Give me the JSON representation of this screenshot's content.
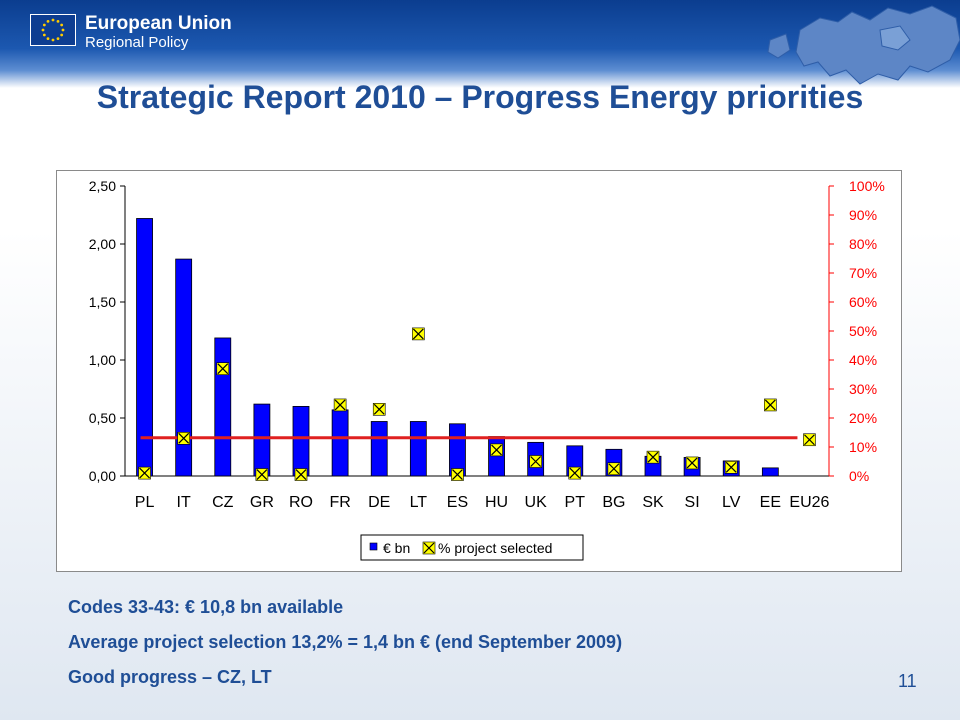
{
  "header": {
    "org_name": "European Union",
    "org_sub": "Regional Policy",
    "logo_icon": "eu-flag-icon",
    "map_icon": "europe-map-icon"
  },
  "slide": {
    "title": "Strategic Report 2010 – Progress Energy priorities",
    "page_number": "11",
    "notes": [
      "Codes 33-43: € 10,8 bn available",
      "Average project selection 13,2% = 1,4 bn € (end September 2009)",
      "Good progress – CZ, LT"
    ]
  },
  "colors": {
    "title": "#1f4e96",
    "bar": "#0000ff",
    "right_axis": "#ff0000",
    "average_line": "#e02020",
    "marker": "#ffff00"
  },
  "chart_data": {
    "type": "bar",
    "categories": [
      "PL",
      "IT",
      "CZ",
      "GR",
      "RO",
      "FR",
      "DE",
      "LT",
      "ES",
      "HU",
      "UK",
      "PT",
      "BG",
      "SK",
      "SI",
      "LV",
      "EE",
      "EU26"
    ],
    "series": [
      {
        "name": "€ bn",
        "type": "bar",
        "axis": "left",
        "values": [
          2.22,
          1.87,
          1.19,
          0.62,
          0.6,
          0.57,
          0.47,
          0.47,
          0.45,
          0.34,
          0.29,
          0.26,
          0.23,
          0.17,
          0.16,
          0.13,
          0.07,
          null
        ]
      },
      {
        "name": "% project selected",
        "type": "scatter",
        "axis": "right",
        "marker": "x-square",
        "values": [
          0.01,
          0.13,
          0.37,
          0.005,
          0.005,
          0.245,
          0.23,
          0.49,
          0.005,
          0.09,
          0.05,
          0.01,
          0.025,
          0.065,
          0.045,
          0.03,
          0.245,
          0.125
        ]
      }
    ],
    "average_line": 0.132,
    "left_axis": {
      "ylim": [
        0,
        2.5
      ],
      "ticks": [
        "0,00",
        "0,50",
        "1,00",
        "1,50",
        "2,00",
        "2,50"
      ]
    },
    "right_axis": {
      "ylim": [
        0,
        1
      ],
      "ticks": [
        "0%",
        "10%",
        "20%",
        "30%",
        "40%",
        "50%",
        "60%",
        "70%",
        "80%",
        "90%",
        "100%"
      ]
    },
    "legend": {
      "position": "bottom",
      "labels": [
        "€ bn",
        "% project selected"
      ]
    },
    "grid": false
  }
}
